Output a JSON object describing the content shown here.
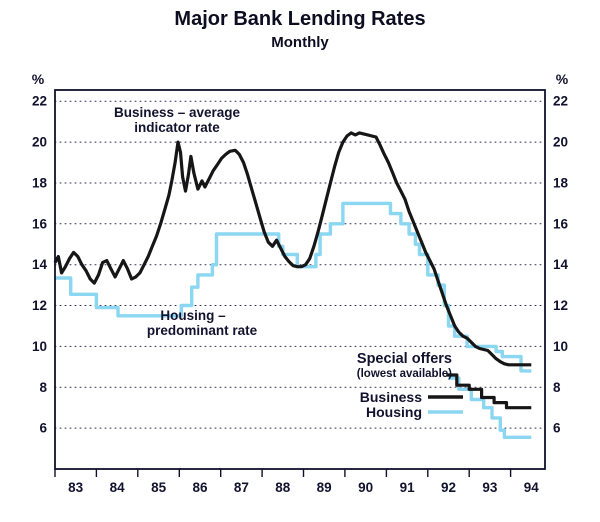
{
  "title": "Major Bank Lending Rates",
  "subtitle": "Monthly",
  "annotations": {
    "business_line1": "Business – average",
    "business_line2": "indicator rate",
    "housing_line1": "Housing –",
    "housing_line2": "predominant rate"
  },
  "legend": {
    "title": "Special offers",
    "subtitle": "(lowest available)",
    "items": [
      {
        "label": "Business",
        "color": "#161616"
      },
      {
        "label": "Housing",
        "color": "#8bd6f0"
      }
    ]
  },
  "colors": {
    "business": "#161616",
    "housing": "#8bd6f0",
    "text": "#12122e"
  },
  "chart_data": {
    "type": "line",
    "title": "Major Bank Lending Rates",
    "subtitle": "Monthly",
    "y_unit_left": "%",
    "y_unit_right": "%",
    "ylim": [
      4.0,
      22.55
    ],
    "xlim": [
      82.5,
      94.33
    ],
    "y_ticks": [
      6,
      8,
      10,
      12,
      14,
      16,
      18,
      20,
      22
    ],
    "x_tick_labels": [
      "83",
      "84",
      "85",
      "86",
      "87",
      "88",
      "89",
      "90",
      "91",
      "92",
      "93",
      "94"
    ],
    "x_tick_years": [
      83,
      84,
      85,
      86,
      87,
      88,
      89,
      90,
      91,
      92,
      93,
      94
    ],
    "grid": "dotted-horizontal",
    "legend_position": "inside-lower-right",
    "series": [
      {
        "name": "Housing – predominant rate",
        "color": "#8bd6f0",
        "width": 3.4,
        "points": [
          [
            82.5,
            13.35
          ],
          [
            82.88,
            13.35
          ],
          [
            82.88,
            12.55
          ],
          [
            83.5,
            12.55
          ],
          [
            83.5,
            11.9
          ],
          [
            84.02,
            11.9
          ],
          [
            84.02,
            11.5
          ],
          [
            85.55,
            11.5
          ],
          [
            85.55,
            12.0
          ],
          [
            85.8,
            12.0
          ],
          [
            85.8,
            12.9
          ],
          [
            85.95,
            12.9
          ],
          [
            85.95,
            13.5
          ],
          [
            86.3,
            13.5
          ],
          [
            86.3,
            14.0
          ],
          [
            86.4,
            14.0
          ],
          [
            86.4,
            15.5
          ],
          [
            87.9,
            15.5
          ],
          [
            87.9,
            14.9
          ],
          [
            88.0,
            14.9
          ],
          [
            88.0,
            14.5
          ],
          [
            88.35,
            14.5
          ],
          [
            88.35,
            13.9
          ],
          [
            88.8,
            13.9
          ],
          [
            88.8,
            14.5
          ],
          [
            88.9,
            14.5
          ],
          [
            88.9,
            15.5
          ],
          [
            89.15,
            15.5
          ],
          [
            89.15,
            16.0
          ],
          [
            89.45,
            16.0
          ],
          [
            89.45,
            17.0
          ],
          [
            90.6,
            17.0
          ],
          [
            90.6,
            16.5
          ],
          [
            90.85,
            16.5
          ],
          [
            90.85,
            16.0
          ],
          [
            91.05,
            16.0
          ],
          [
            91.05,
            15.5
          ],
          [
            91.2,
            15.5
          ],
          [
            91.2,
            15.0
          ],
          [
            91.3,
            15.0
          ],
          [
            91.3,
            14.5
          ],
          [
            91.5,
            14.5
          ],
          [
            91.5,
            13.5
          ],
          [
            91.75,
            13.5
          ],
          [
            91.75,
            13.0
          ],
          [
            91.9,
            13.0
          ],
          [
            91.9,
            12.0
          ],
          [
            92.0,
            12.0
          ],
          [
            92.0,
            11.0
          ],
          [
            92.15,
            11.0
          ],
          [
            92.15,
            10.5
          ],
          [
            92.45,
            10.5
          ],
          [
            92.45,
            10.0
          ],
          [
            93.15,
            10.0
          ],
          [
            93.15,
            9.75
          ],
          [
            93.3,
            9.75
          ],
          [
            93.3,
            9.5
          ],
          [
            93.75,
            9.5
          ],
          [
            93.75,
            8.8
          ],
          [
            94.0,
            8.8
          ]
        ]
      },
      {
        "name": "Housing – special offers (lowest available)",
        "color": "#8bd6f0",
        "width": 3.4,
        "points": [
          [
            92.0,
            8.45
          ],
          [
            92.25,
            8.45
          ],
          [
            92.25,
            7.9
          ],
          [
            92.55,
            7.9
          ],
          [
            92.55,
            7.4
          ],
          [
            92.85,
            7.4
          ],
          [
            92.85,
            7.0
          ],
          [
            93.05,
            7.0
          ],
          [
            93.05,
            6.5
          ],
          [
            93.25,
            6.5
          ],
          [
            93.25,
            5.9
          ],
          [
            93.35,
            5.9
          ],
          [
            93.35,
            5.55
          ],
          [
            94.0,
            5.55
          ]
        ]
      },
      {
        "name": "Business – average indicator rate",
        "color": "#161616",
        "width": 3.2,
        "points": [
          [
            82.5,
            14.1
          ],
          [
            82.58,
            14.4
          ],
          [
            82.66,
            13.6
          ],
          [
            82.75,
            13.9
          ],
          [
            82.85,
            14.3
          ],
          [
            82.95,
            14.6
          ],
          [
            83.05,
            14.4
          ],
          [
            83.15,
            14.0
          ],
          [
            83.25,
            13.7
          ],
          [
            83.35,
            13.3
          ],
          [
            83.45,
            13.1
          ],
          [
            83.55,
            13.5
          ],
          [
            83.65,
            14.1
          ],
          [
            83.75,
            14.2
          ],
          [
            83.85,
            13.8
          ],
          [
            83.95,
            13.4
          ],
          [
            84.05,
            13.8
          ],
          [
            84.15,
            14.2
          ],
          [
            84.25,
            13.8
          ],
          [
            84.35,
            13.3
          ],
          [
            84.45,
            13.4
          ],
          [
            84.55,
            13.6
          ],
          [
            84.65,
            14.0
          ],
          [
            84.75,
            14.4
          ],
          [
            84.85,
            14.9
          ],
          [
            84.95,
            15.4
          ],
          [
            85.05,
            16.0
          ],
          [
            85.15,
            16.7
          ],
          [
            85.25,
            17.4
          ],
          [
            85.32,
            18.1
          ],
          [
            85.4,
            19.0
          ],
          [
            85.47,
            20.0
          ],
          [
            85.53,
            19.5
          ],
          [
            85.58,
            18.3
          ],
          [
            85.65,
            17.6
          ],
          [
            85.72,
            18.4
          ],
          [
            85.78,
            19.3
          ],
          [
            85.85,
            18.5
          ],
          [
            85.95,
            17.7
          ],
          [
            86.05,
            18.1
          ],
          [
            86.12,
            17.8
          ],
          [
            86.22,
            18.2
          ],
          [
            86.32,
            18.6
          ],
          [
            86.42,
            18.9
          ],
          [
            86.52,
            19.2
          ],
          [
            86.62,
            19.4
          ],
          [
            86.72,
            19.55
          ],
          [
            86.85,
            19.6
          ],
          [
            86.95,
            19.4
          ],
          [
            87.05,
            19.0
          ],
          [
            87.15,
            18.4
          ],
          [
            87.25,
            17.7
          ],
          [
            87.35,
            17.0
          ],
          [
            87.45,
            16.3
          ],
          [
            87.55,
            15.6
          ],
          [
            87.65,
            15.1
          ],
          [
            87.75,
            14.9
          ],
          [
            87.85,
            15.2
          ],
          [
            87.95,
            14.8
          ],
          [
            88.05,
            14.4
          ],
          [
            88.15,
            14.15
          ],
          [
            88.25,
            13.95
          ],
          [
            88.35,
            13.9
          ],
          [
            88.45,
            13.9
          ],
          [
            88.55,
            14.0
          ],
          [
            88.65,
            14.3
          ],
          [
            88.75,
            14.9
          ],
          [
            88.85,
            15.6
          ],
          [
            88.95,
            16.4
          ],
          [
            89.05,
            17.2
          ],
          [
            89.15,
            18.0
          ],
          [
            89.25,
            18.8
          ],
          [
            89.35,
            19.5
          ],
          [
            89.45,
            20.0
          ],
          [
            89.55,
            20.3
          ],
          [
            89.65,
            20.45
          ],
          [
            89.75,
            20.35
          ],
          [
            89.85,
            20.45
          ],
          [
            89.95,
            20.4
          ],
          [
            90.05,
            20.35
          ],
          [
            90.15,
            20.3
          ],
          [
            90.25,
            20.25
          ],
          [
            90.35,
            19.85
          ],
          [
            90.45,
            19.4
          ],
          [
            90.55,
            19.0
          ],
          [
            90.65,
            18.5
          ],
          [
            90.75,
            18.0
          ],
          [
            90.85,
            17.6
          ],
          [
            90.95,
            17.2
          ],
          [
            91.05,
            16.6
          ],
          [
            91.15,
            16.1
          ],
          [
            91.25,
            15.6
          ],
          [
            91.35,
            15.1
          ],
          [
            91.45,
            14.6
          ],
          [
            91.55,
            14.2
          ],
          [
            91.65,
            13.8
          ],
          [
            91.75,
            13.2
          ],
          [
            91.85,
            12.6
          ],
          [
            91.95,
            12.0
          ],
          [
            92.05,
            11.5
          ],
          [
            92.15,
            11.0
          ],
          [
            92.25,
            10.7
          ],
          [
            92.35,
            10.5
          ],
          [
            92.45,
            10.4
          ],
          [
            92.55,
            10.2
          ],
          [
            92.65,
            10.0
          ],
          [
            92.75,
            9.9
          ],
          [
            92.85,
            9.85
          ],
          [
            92.95,
            9.8
          ],
          [
            93.05,
            9.6
          ],
          [
            93.15,
            9.4
          ],
          [
            93.25,
            9.25
          ],
          [
            93.35,
            9.15
          ],
          [
            93.45,
            9.1
          ],
          [
            93.6,
            9.1
          ],
          [
            93.8,
            9.1
          ],
          [
            94.0,
            9.1
          ]
        ]
      },
      {
        "name": "Business – special offers (lowest available)",
        "color": "#161616",
        "width": 3.2,
        "points": [
          [
            91.95,
            8.6
          ],
          [
            92.2,
            8.6
          ],
          [
            92.2,
            8.1
          ],
          [
            92.5,
            8.1
          ],
          [
            92.5,
            7.9
          ],
          [
            92.8,
            7.9
          ],
          [
            92.8,
            7.5
          ],
          [
            93.1,
            7.5
          ],
          [
            93.1,
            7.25
          ],
          [
            93.4,
            7.25
          ],
          [
            93.4,
            7.0
          ],
          [
            94.0,
            7.0
          ]
        ]
      }
    ]
  }
}
